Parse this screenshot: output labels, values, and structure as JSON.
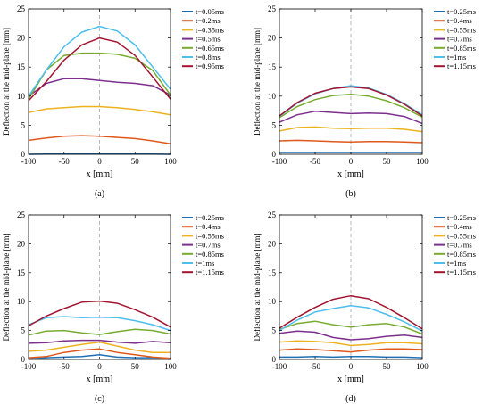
{
  "colors": {
    "frame": "#000000",
    "grid_center": "#a6a6a6",
    "series": [
      "#1f6fb5",
      "#e0591c",
      "#eeb220",
      "#7d2f8e",
      "#77ac30",
      "#4dbeee",
      "#a2142f"
    ]
  },
  "chart_data": [
    {
      "type": "line",
      "caption": "(a)",
      "xlabel": "x [mm]",
      "ylabel": "Deflection at the mid-plane [mm]",
      "xlim": [
        -100,
        100
      ],
      "ylim": [
        0,
        25
      ],
      "xticks": [
        -100,
        -50,
        0,
        50,
        100
      ],
      "yticks": [
        0,
        5,
        10,
        15,
        20,
        25
      ],
      "center_line_x": 0,
      "legend_position": "top-right",
      "x": [
        -100,
        -75,
        -50,
        -25,
        0,
        25,
        50,
        75,
        100
      ],
      "series": [
        {
          "name": "t=0.05ms",
          "values": [
            0,
            0.05,
            0.05,
            0.05,
            0.05,
            0.05,
            0.05,
            0.05,
            0
          ]
        },
        {
          "name": "t=0.2ms",
          "values": [
            2.4,
            2.8,
            3.1,
            3.2,
            3.1,
            2.9,
            2.7,
            2.3,
            1.8
          ]
        },
        {
          "name": "t=0.35ms",
          "values": [
            7.2,
            7.8,
            8.0,
            8.2,
            8.2,
            8.0,
            7.7,
            7.3,
            6.8
          ]
        },
        {
          "name": "t=0.5ms",
          "values": [
            10.0,
            12.2,
            13.0,
            13.0,
            12.7,
            12.4,
            12.2,
            11.8,
            10.2
          ]
        },
        {
          "name": "t=0.65ms",
          "values": [
            9.5,
            14.5,
            17.0,
            17.4,
            17.4,
            17.2,
            16.5,
            14.4,
            10.2
          ]
        },
        {
          "name": "t=0.8ms",
          "values": [
            10.0,
            14.5,
            18.5,
            21.0,
            22.0,
            21.2,
            18.8,
            15.0,
            11.2
          ]
        },
        {
          "name": "t=0.95ms",
          "values": [
            9.2,
            12.5,
            16.2,
            18.8,
            20.0,
            19.3,
            17.0,
            13.3,
            9.5
          ]
        }
      ]
    },
    {
      "type": "line",
      "caption": "(b)",
      "xlabel": "x [mm]",
      "ylabel": "Deflection at the mid-plane [mm]",
      "xlim": [
        -100,
        100
      ],
      "ylim": [
        0,
        25
      ],
      "xticks": [
        -100,
        -50,
        0,
        50,
        100
      ],
      "yticks": [
        0,
        5,
        10,
        15,
        20,
        25
      ],
      "center_line_x": 0,
      "legend_position": "top-right",
      "x": [
        -100,
        -75,
        -50,
        -25,
        0,
        25,
        50,
        75,
        100
      ],
      "series": [
        {
          "name": "t=0.25ms",
          "values": [
            0.3,
            0.3,
            0.3,
            0.3,
            0.3,
            0.3,
            0.3,
            0.3,
            0.3
          ]
        },
        {
          "name": "t=0.4ms",
          "values": [
            2.3,
            2.4,
            2.3,
            2.2,
            2.1,
            2.2,
            2.2,
            2.1,
            2.0
          ]
        },
        {
          "name": "t=0.55ms",
          "values": [
            4.0,
            4.6,
            4.7,
            4.5,
            4.4,
            4.5,
            4.5,
            4.3,
            3.9
          ]
        },
        {
          "name": "t=0.7ms",
          "values": [
            5.5,
            6.8,
            7.4,
            7.2,
            7.0,
            7.1,
            7.0,
            6.5,
            5.3
          ]
        },
        {
          "name": "t=0.85ms",
          "values": [
            6.3,
            8.2,
            9.4,
            10.1,
            10.3,
            10.0,
            9.2,
            8.0,
            6.4
          ]
        },
        {
          "name": "t=1ms",
          "values": [
            6.5,
            8.8,
            10.4,
            11.3,
            11.8,
            11.4,
            10.3,
            8.7,
            6.8
          ]
        },
        {
          "name": "t=1.15ms",
          "values": [
            6.6,
            8.9,
            10.5,
            11.3,
            11.6,
            11.3,
            10.2,
            8.6,
            6.6
          ]
        }
      ]
    },
    {
      "type": "line",
      "caption": "(c)",
      "xlabel": "x [mm]",
      "ylabel": "Deflection at the mid-plane [mm]",
      "xlim": [
        -100,
        100
      ],
      "ylim": [
        0,
        25
      ],
      "xticks": [
        -100,
        -50,
        0,
        50,
        100
      ],
      "yticks": [
        0,
        5,
        10,
        15,
        20,
        25
      ],
      "center_line_x": 0,
      "legend_position": "top-right",
      "x": [
        -100,
        -75,
        -50,
        -25,
        0,
        25,
        50,
        75,
        100
      ],
      "series": [
        {
          "name": "t=0.25ms",
          "values": [
            0.1,
            0.3,
            0.4,
            0.5,
            0.8,
            0.4,
            0.3,
            0.3,
            0.2
          ]
        },
        {
          "name": "t=0.4ms",
          "values": [
            0.3,
            0.5,
            1.2,
            1.6,
            1.8,
            1.2,
            0.8,
            0.4,
            0.2
          ]
        },
        {
          "name": "t=0.55ms",
          "values": [
            1.4,
            1.6,
            2.1,
            2.6,
            3.0,
            2.3,
            1.6,
            1.2,
            1.2
          ]
        },
        {
          "name": "t=0.7ms",
          "values": [
            2.8,
            2.9,
            3.2,
            3.3,
            3.3,
            3.0,
            2.8,
            3.1,
            2.9
          ]
        },
        {
          "name": "t=0.85ms",
          "values": [
            4.2,
            4.9,
            5.0,
            4.6,
            4.3,
            4.8,
            5.2,
            5.0,
            4.4
          ]
        },
        {
          "name": "t=1ms",
          "values": [
            6.0,
            7.2,
            7.4,
            7.2,
            7.3,
            7.2,
            6.7,
            6.0,
            5.0
          ]
        },
        {
          "name": "t=1.15ms",
          "values": [
            5.8,
            7.5,
            8.8,
            9.9,
            10.1,
            9.7,
            8.6,
            7.3,
            5.6
          ]
        }
      ]
    },
    {
      "type": "line",
      "caption": "(d)",
      "xlabel": "x [mm]",
      "ylabel": "Deflection at the mid-plane [mm]",
      "xlim": [
        -100,
        100
      ],
      "ylim": [
        0,
        25
      ],
      "xticks": [
        -100,
        -50,
        0,
        50,
        100
      ],
      "yticks": [
        0,
        5,
        10,
        15,
        20,
        25
      ],
      "center_line_x": 0,
      "legend_position": "top-right",
      "x": [
        -100,
        -75,
        -50,
        -25,
        0,
        25,
        50,
        75,
        100
      ],
      "series": [
        {
          "name": "t=0.25ms",
          "values": [
            0.4,
            0.4,
            0.5,
            0.4,
            0.5,
            0.5,
            0.4,
            0.4,
            0.3
          ]
        },
        {
          "name": "t=0.4ms",
          "values": [
            1.6,
            1.8,
            1.7,
            1.5,
            1.3,
            1.6,
            1.8,
            1.8,
            1.7
          ]
        },
        {
          "name": "t=0.55ms",
          "values": [
            3.0,
            3.2,
            3.1,
            2.9,
            2.4,
            2.6,
            2.9,
            2.9,
            2.7
          ]
        },
        {
          "name": "t=0.7ms",
          "values": [
            4.5,
            4.9,
            4.7,
            3.8,
            3.4,
            3.6,
            4.0,
            4.2,
            3.8
          ]
        },
        {
          "name": "t=0.85ms",
          "values": [
            5.2,
            6.2,
            6.6,
            6.0,
            5.6,
            6.0,
            6.2,
            5.6,
            4.4
          ]
        },
        {
          "name": "t=1ms",
          "values": [
            5.0,
            6.8,
            8.2,
            8.8,
            9.3,
            8.9,
            7.8,
            6.5,
            4.9
          ]
        },
        {
          "name": "t=1.15ms",
          "values": [
            5.4,
            7.3,
            9.0,
            10.4,
            11.0,
            10.5,
            9.0,
            7.2,
            5.3
          ]
        }
      ]
    }
  ]
}
